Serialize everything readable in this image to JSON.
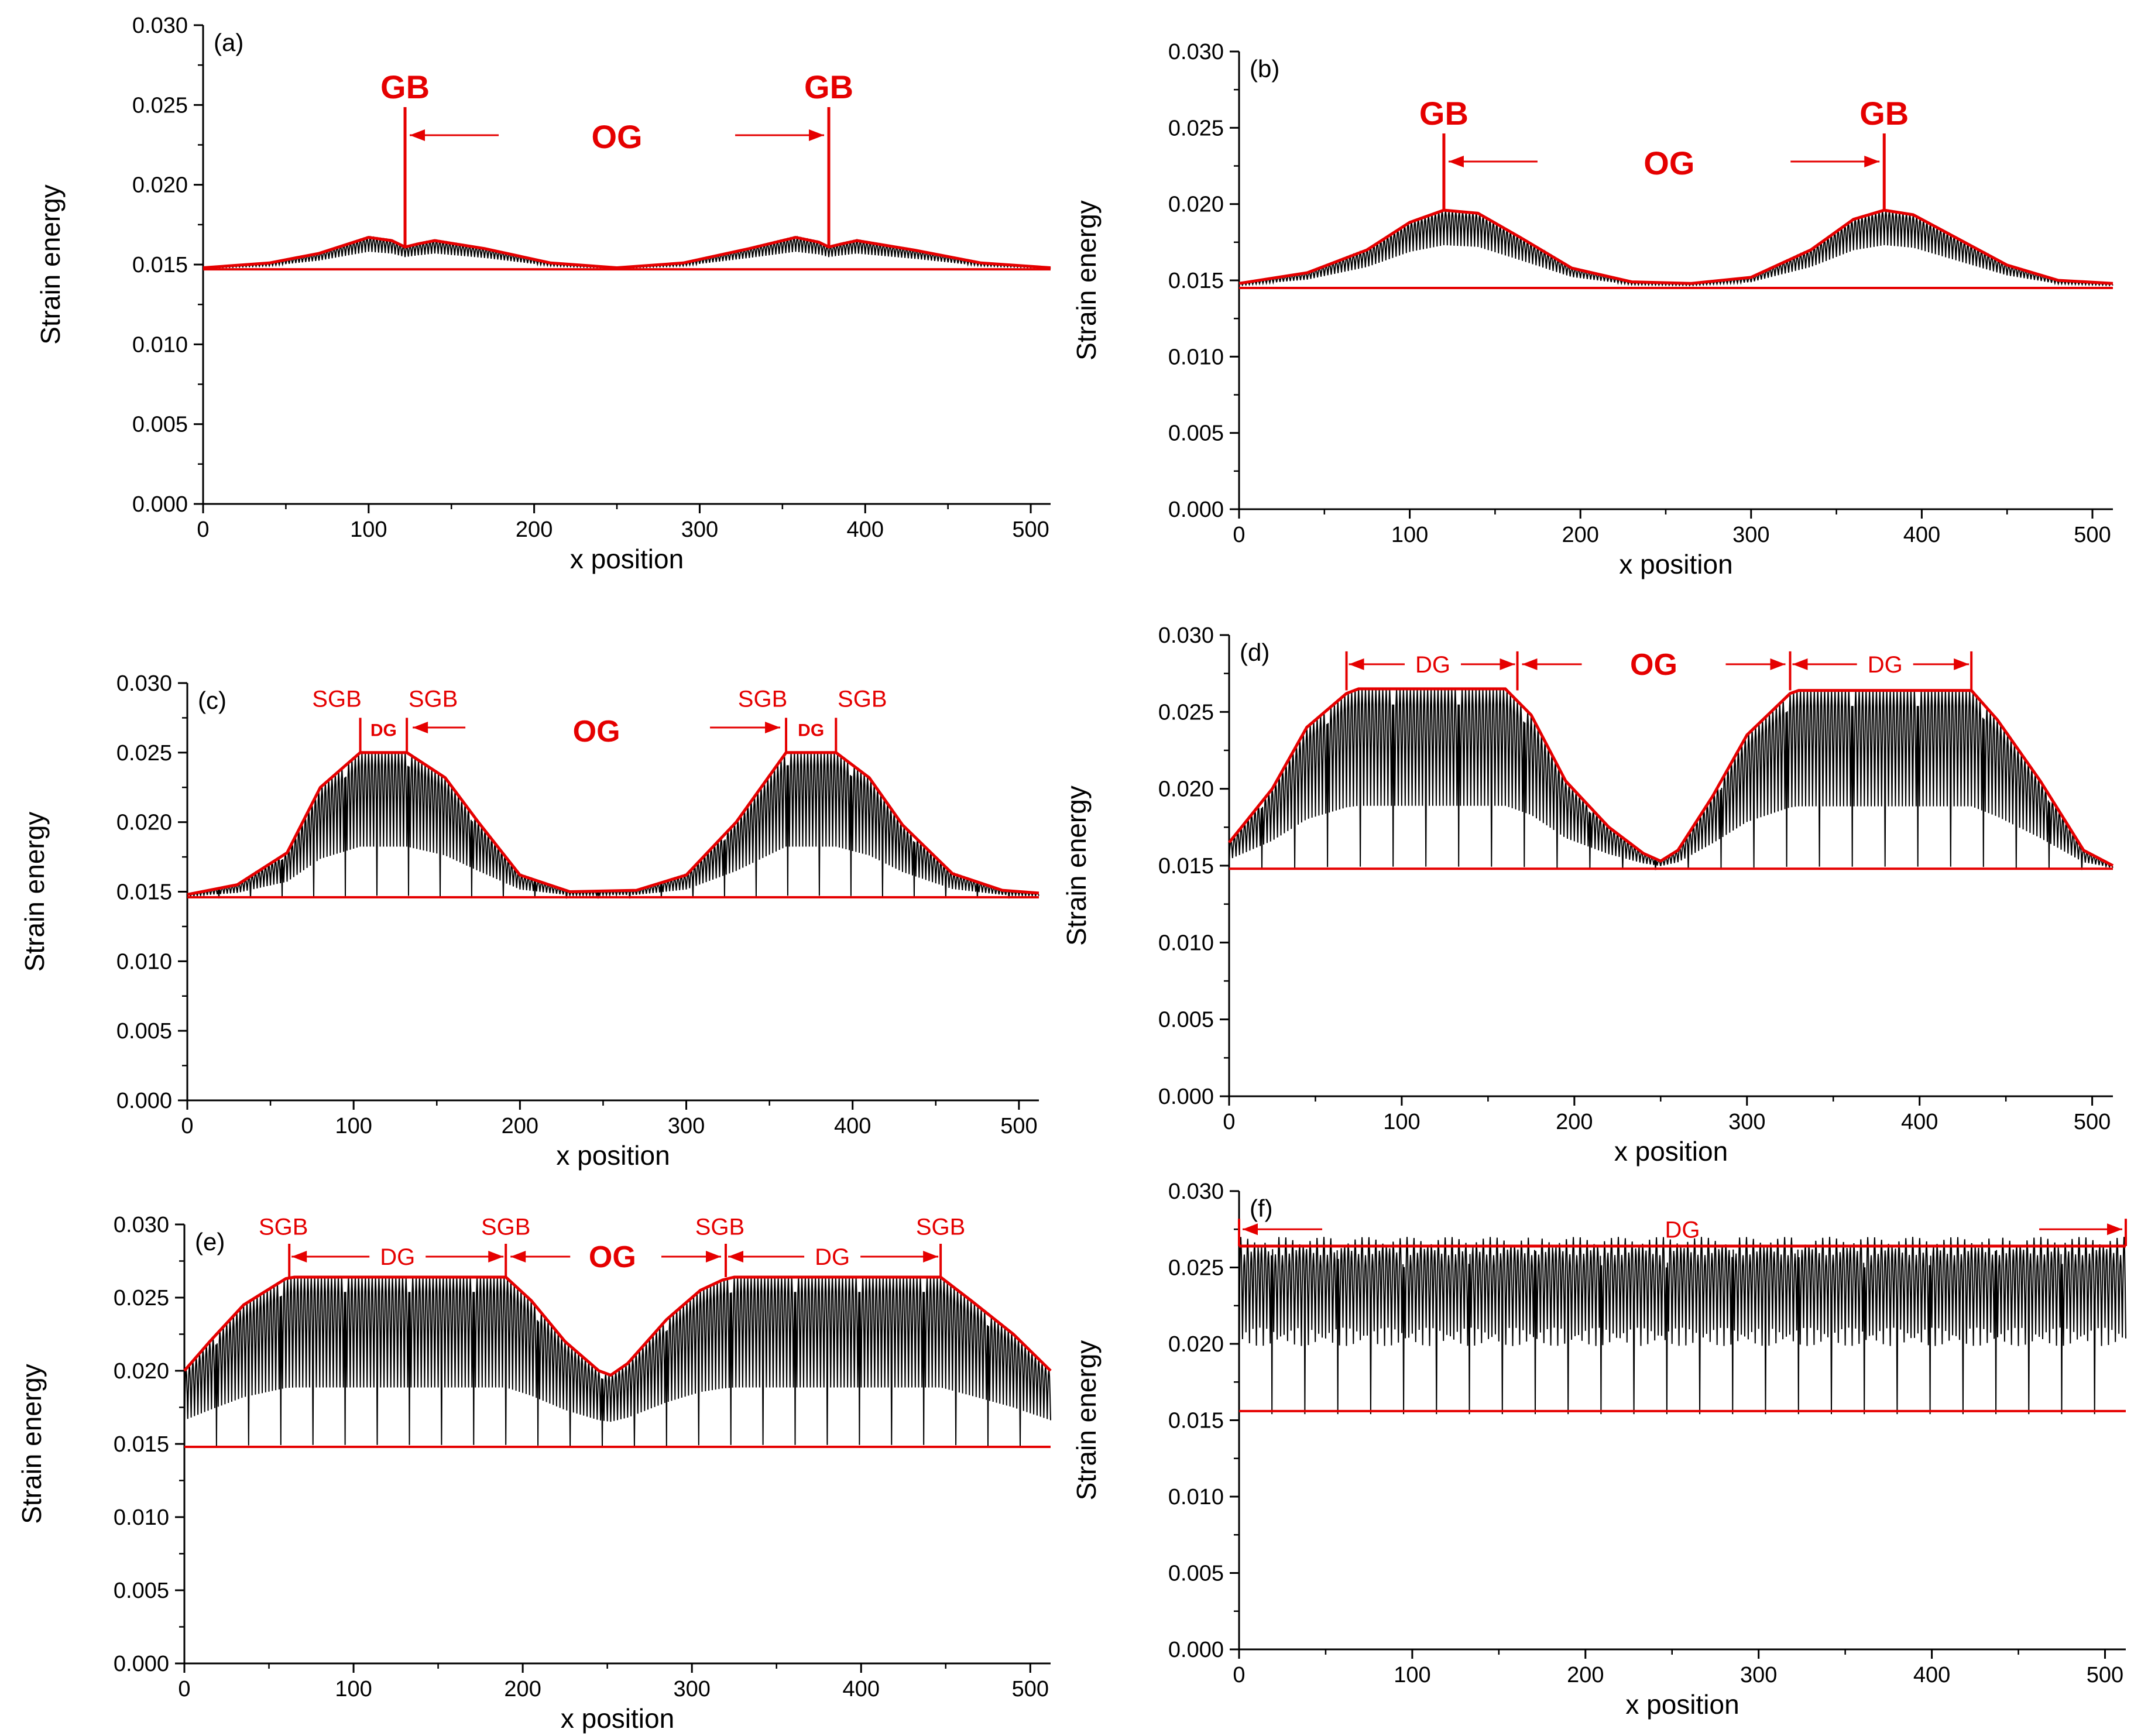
{
  "chart_data": [
    {
      "id": "a",
      "panel_label": "(a)",
      "type": "line",
      "xlabel": "x position",
      "ylabel": "Strain energy",
      "xlim": [
        0,
        512
      ],
      "ylim": [
        0,
        0.03
      ],
      "xticks": [
        "0",
        "100",
        "200",
        "300",
        "400",
        "500"
      ],
      "yticks": [
        "0.000",
        "0.005",
        "0.010",
        "0.015",
        "0.020",
        "0.025",
        "0.030"
      ],
      "baseline": 0.0147,
      "mode": "gb",
      "series": [
        {
          "name": "strain energy (oscillating)",
          "color": "#000000"
        },
        {
          "name": "envelope",
          "color": "#e50000",
          "points": [
            [
              0,
              0.0148
            ],
            [
              40,
              0.0151
            ],
            [
              70,
              0.0157
            ],
            [
              100,
              0.0167
            ],
            [
              114,
              0.0165
            ],
            [
              122,
              0.0161
            ],
            [
              130,
              0.0163
            ],
            [
              140,
              0.0165
            ],
            [
              170,
              0.016
            ],
            [
              210,
              0.0151
            ],
            [
              250,
              0.0148
            ],
            [
              290,
              0.0151
            ],
            [
              330,
              0.016
            ],
            [
              358,
              0.0167
            ],
            [
              372,
              0.0164
            ],
            [
              378,
              0.0161
            ],
            [
              386,
              0.0163
            ],
            [
              395,
              0.0165
            ],
            [
              430,
              0.0159
            ],
            [
              470,
              0.0151
            ],
            [
              512,
              0.0148
            ]
          ]
        }
      ],
      "annotations": [
        {
          "text": "GB",
          "x": 122
        },
        {
          "text": "GB",
          "x": 378
        },
        {
          "text": "OG",
          "x": 250
        }
      ]
    },
    {
      "id": "b",
      "panel_label": "(b)",
      "type": "line",
      "xlabel": "x position",
      "ylabel": "Strain energy",
      "xlim": [
        0,
        512
      ],
      "ylim": [
        0,
        0.03
      ],
      "xticks": [
        "0",
        "100",
        "200",
        "300",
        "400",
        "500"
      ],
      "yticks": [
        "0.000",
        "0.005",
        "0.010",
        "0.015",
        "0.020",
        "0.025",
        "0.030"
      ],
      "baseline": 0.0145,
      "mode": "gb",
      "series": [
        {
          "name": "strain energy (oscillating)",
          "color": "#000000"
        },
        {
          "name": "envelope",
          "color": "#e50000",
          "points": [
            [
              0,
              0.0148
            ],
            [
              40,
              0.0155
            ],
            [
              75,
              0.017
            ],
            [
              100,
              0.0188
            ],
            [
              120,
              0.0196
            ],
            [
              140,
              0.0194
            ],
            [
              165,
              0.0178
            ],
            [
              195,
              0.0158
            ],
            [
              230,
              0.0149
            ],
            [
              265,
              0.0148
            ],
            [
              300,
              0.0152
            ],
            [
              335,
              0.017
            ],
            [
              360,
              0.019
            ],
            [
              378,
              0.0196
            ],
            [
              395,
              0.0193
            ],
            [
              420,
              0.0178
            ],
            [
              450,
              0.016
            ],
            [
              480,
              0.015
            ],
            [
              512,
              0.0148
            ]
          ]
        }
      ],
      "annotations": [
        {
          "text": "GB",
          "x": 120
        },
        {
          "text": "GB",
          "x": 378
        },
        {
          "text": "OG",
          "x": 252
        }
      ]
    },
    {
      "id": "c",
      "panel_label": "(c)",
      "type": "line",
      "xlabel": "x position",
      "ylabel": "Strain energy",
      "xlim": [
        0,
        512
      ],
      "ylim": [
        0,
        0.03
      ],
      "xticks": [
        "0",
        "100",
        "200",
        "300",
        "400",
        "500"
      ],
      "yticks": [
        "0.000",
        "0.005",
        "0.010",
        "0.015",
        "0.020",
        "0.025",
        "0.030"
      ],
      "baseline": 0.0146,
      "mode": "sgb",
      "series": [
        {
          "name": "strain energy (oscillating)",
          "color": "#000000"
        },
        {
          "name": "envelope",
          "color": "#e50000",
          "points": [
            [
              0,
              0.0148
            ],
            [
              30,
              0.0155
            ],
            [
              60,
              0.0178
            ],
            [
              80,
              0.0225
            ],
            [
              104,
              0.025
            ],
            [
              132,
              0.025
            ],
            [
              155,
              0.0232
            ],
            [
              175,
              0.02
            ],
            [
              200,
              0.0162
            ],
            [
              230,
              0.015
            ],
            [
              270,
              0.0151
            ],
            [
              300,
              0.0162
            ],
            [
              330,
              0.02
            ],
            [
              360,
              0.025
            ],
            [
              390,
              0.025
            ],
            [
              410,
              0.0232
            ],
            [
              430,
              0.0198
            ],
            [
              460,
              0.0163
            ],
            [
              490,
              0.0151
            ],
            [
              512,
              0.0149
            ]
          ]
        }
      ],
      "annotations": [
        {
          "text": "SGB",
          "x": 104
        },
        {
          "text": "SGB",
          "x": 132
        },
        {
          "text": "SGB",
          "x": 360
        },
        {
          "text": "SGB",
          "x": 390
        },
        {
          "text": "DG",
          "x": 118
        },
        {
          "text": "DG",
          "x": 375
        },
        {
          "text": "OG",
          "x": 246
        }
      ]
    },
    {
      "id": "d",
      "panel_label": "(d)",
      "type": "line",
      "xlabel": "x position",
      "ylabel": "Strain energy",
      "xlim": [
        0,
        512
      ],
      "ylim": [
        0,
        0.03
      ],
      "xticks": [
        "0",
        "100",
        "200",
        "300",
        "400",
        "500"
      ],
      "yticks": [
        "0.000",
        "0.005",
        "0.010",
        "0.015",
        "0.020",
        "0.025",
        "0.030"
      ],
      "baseline": 0.0148,
      "mode": "dg_plateau",
      "series": [
        {
          "name": "strain energy (oscillating)",
          "color": "#000000"
        },
        {
          "name": "envelope",
          "color": "#e50000",
          "points": [
            [
              0,
              0.0165
            ],
            [
              25,
              0.02
            ],
            [
              45,
              0.024
            ],
            [
              68,
              0.0262
            ],
            [
              75,
              0.0265
            ],
            [
              160,
              0.0265
            ],
            [
              175,
              0.0248
            ],
            [
              195,
              0.0205
            ],
            [
              220,
              0.0175
            ],
            [
              240,
              0.0158
            ],
            [
              250,
              0.0153
            ],
            [
              260,
              0.016
            ],
            [
              280,
              0.0195
            ],
            [
              300,
              0.0235
            ],
            [
              325,
              0.0262
            ],
            [
              330,
              0.0264
            ],
            [
              430,
              0.0264
            ],
            [
              445,
              0.0245
            ],
            [
              470,
              0.0205
            ],
            [
              495,
              0.016
            ],
            [
              512,
              0.015
            ]
          ]
        }
      ],
      "annotations": [
        {
          "text": "DG",
          "x": 118
        },
        {
          "text": "DG",
          "x": 380
        },
        {
          "text": "OG",
          "x": 246
        }
      ]
    },
    {
      "id": "e",
      "panel_label": "(e)",
      "type": "line",
      "xlabel": "x position",
      "ylabel": "Strain energy",
      "xlim": [
        0,
        512
      ],
      "ylim": [
        0,
        0.03
      ],
      "xticks": [
        "0",
        "100",
        "200",
        "300",
        "400",
        "500"
      ],
      "yticks": [
        "0.000",
        "0.005",
        "0.010",
        "0.015",
        "0.020",
        "0.025",
        "0.030"
      ],
      "baseline": 0.0148,
      "mode": "dg_plateau",
      "series": [
        {
          "name": "strain energy (oscillating)",
          "color": "#000000"
        },
        {
          "name": "envelope",
          "color": "#e50000",
          "points": [
            [
              0,
              0.02
            ],
            [
              15,
              0.022
            ],
            [
              35,
              0.0245
            ],
            [
              60,
              0.0263
            ],
            [
              65,
              0.0264
            ],
            [
              190,
              0.0264
            ],
            [
              205,
              0.0248
            ],
            [
              225,
              0.022
            ],
            [
              245,
              0.02
            ],
            [
              252,
              0.0197
            ],
            [
              262,
              0.0205
            ],
            [
              285,
              0.0235
            ],
            [
              305,
              0.0255
            ],
            [
              318,
              0.0262
            ],
            [
              325,
              0.0264
            ],
            [
              447,
              0.0264
            ],
            [
              465,
              0.0248
            ],
            [
              490,
              0.0225
            ],
            [
              512,
              0.02
            ]
          ]
        }
      ],
      "annotations": [
        {
          "text": "SGB",
          "x": 62
        },
        {
          "text": "SGB",
          "x": 190
        },
        {
          "text": "SGB",
          "x": 320
        },
        {
          "text": "SGB",
          "x": 447
        },
        {
          "text": "DG",
          "x": 126
        },
        {
          "text": "DG",
          "x": 383
        },
        {
          "text": "OG",
          "x": 253
        }
      ]
    },
    {
      "id": "f",
      "panel_label": "(f)",
      "type": "line",
      "xlabel": "x position",
      "ylabel": "Strain energy",
      "xlim": [
        0,
        512
      ],
      "ylim": [
        0,
        0.03
      ],
      "xticks": [
        "0",
        "100",
        "200",
        "300",
        "400",
        "500"
      ],
      "yticks": [
        "0.000",
        "0.005",
        "0.010",
        "0.015",
        "0.020",
        "0.025",
        "0.030"
      ],
      "baseline": 0.0156,
      "mode": "uniform",
      "series": [
        {
          "name": "strain energy (oscillating)",
          "color": "#000000"
        },
        {
          "name": "envelope",
          "color": "#e50000",
          "points": [
            [
              0,
              0.0264
            ],
            [
              512,
              0.0264
            ]
          ]
        }
      ],
      "annotations": [
        {
          "text": "DG",
          "x": 256
        }
      ]
    }
  ]
}
